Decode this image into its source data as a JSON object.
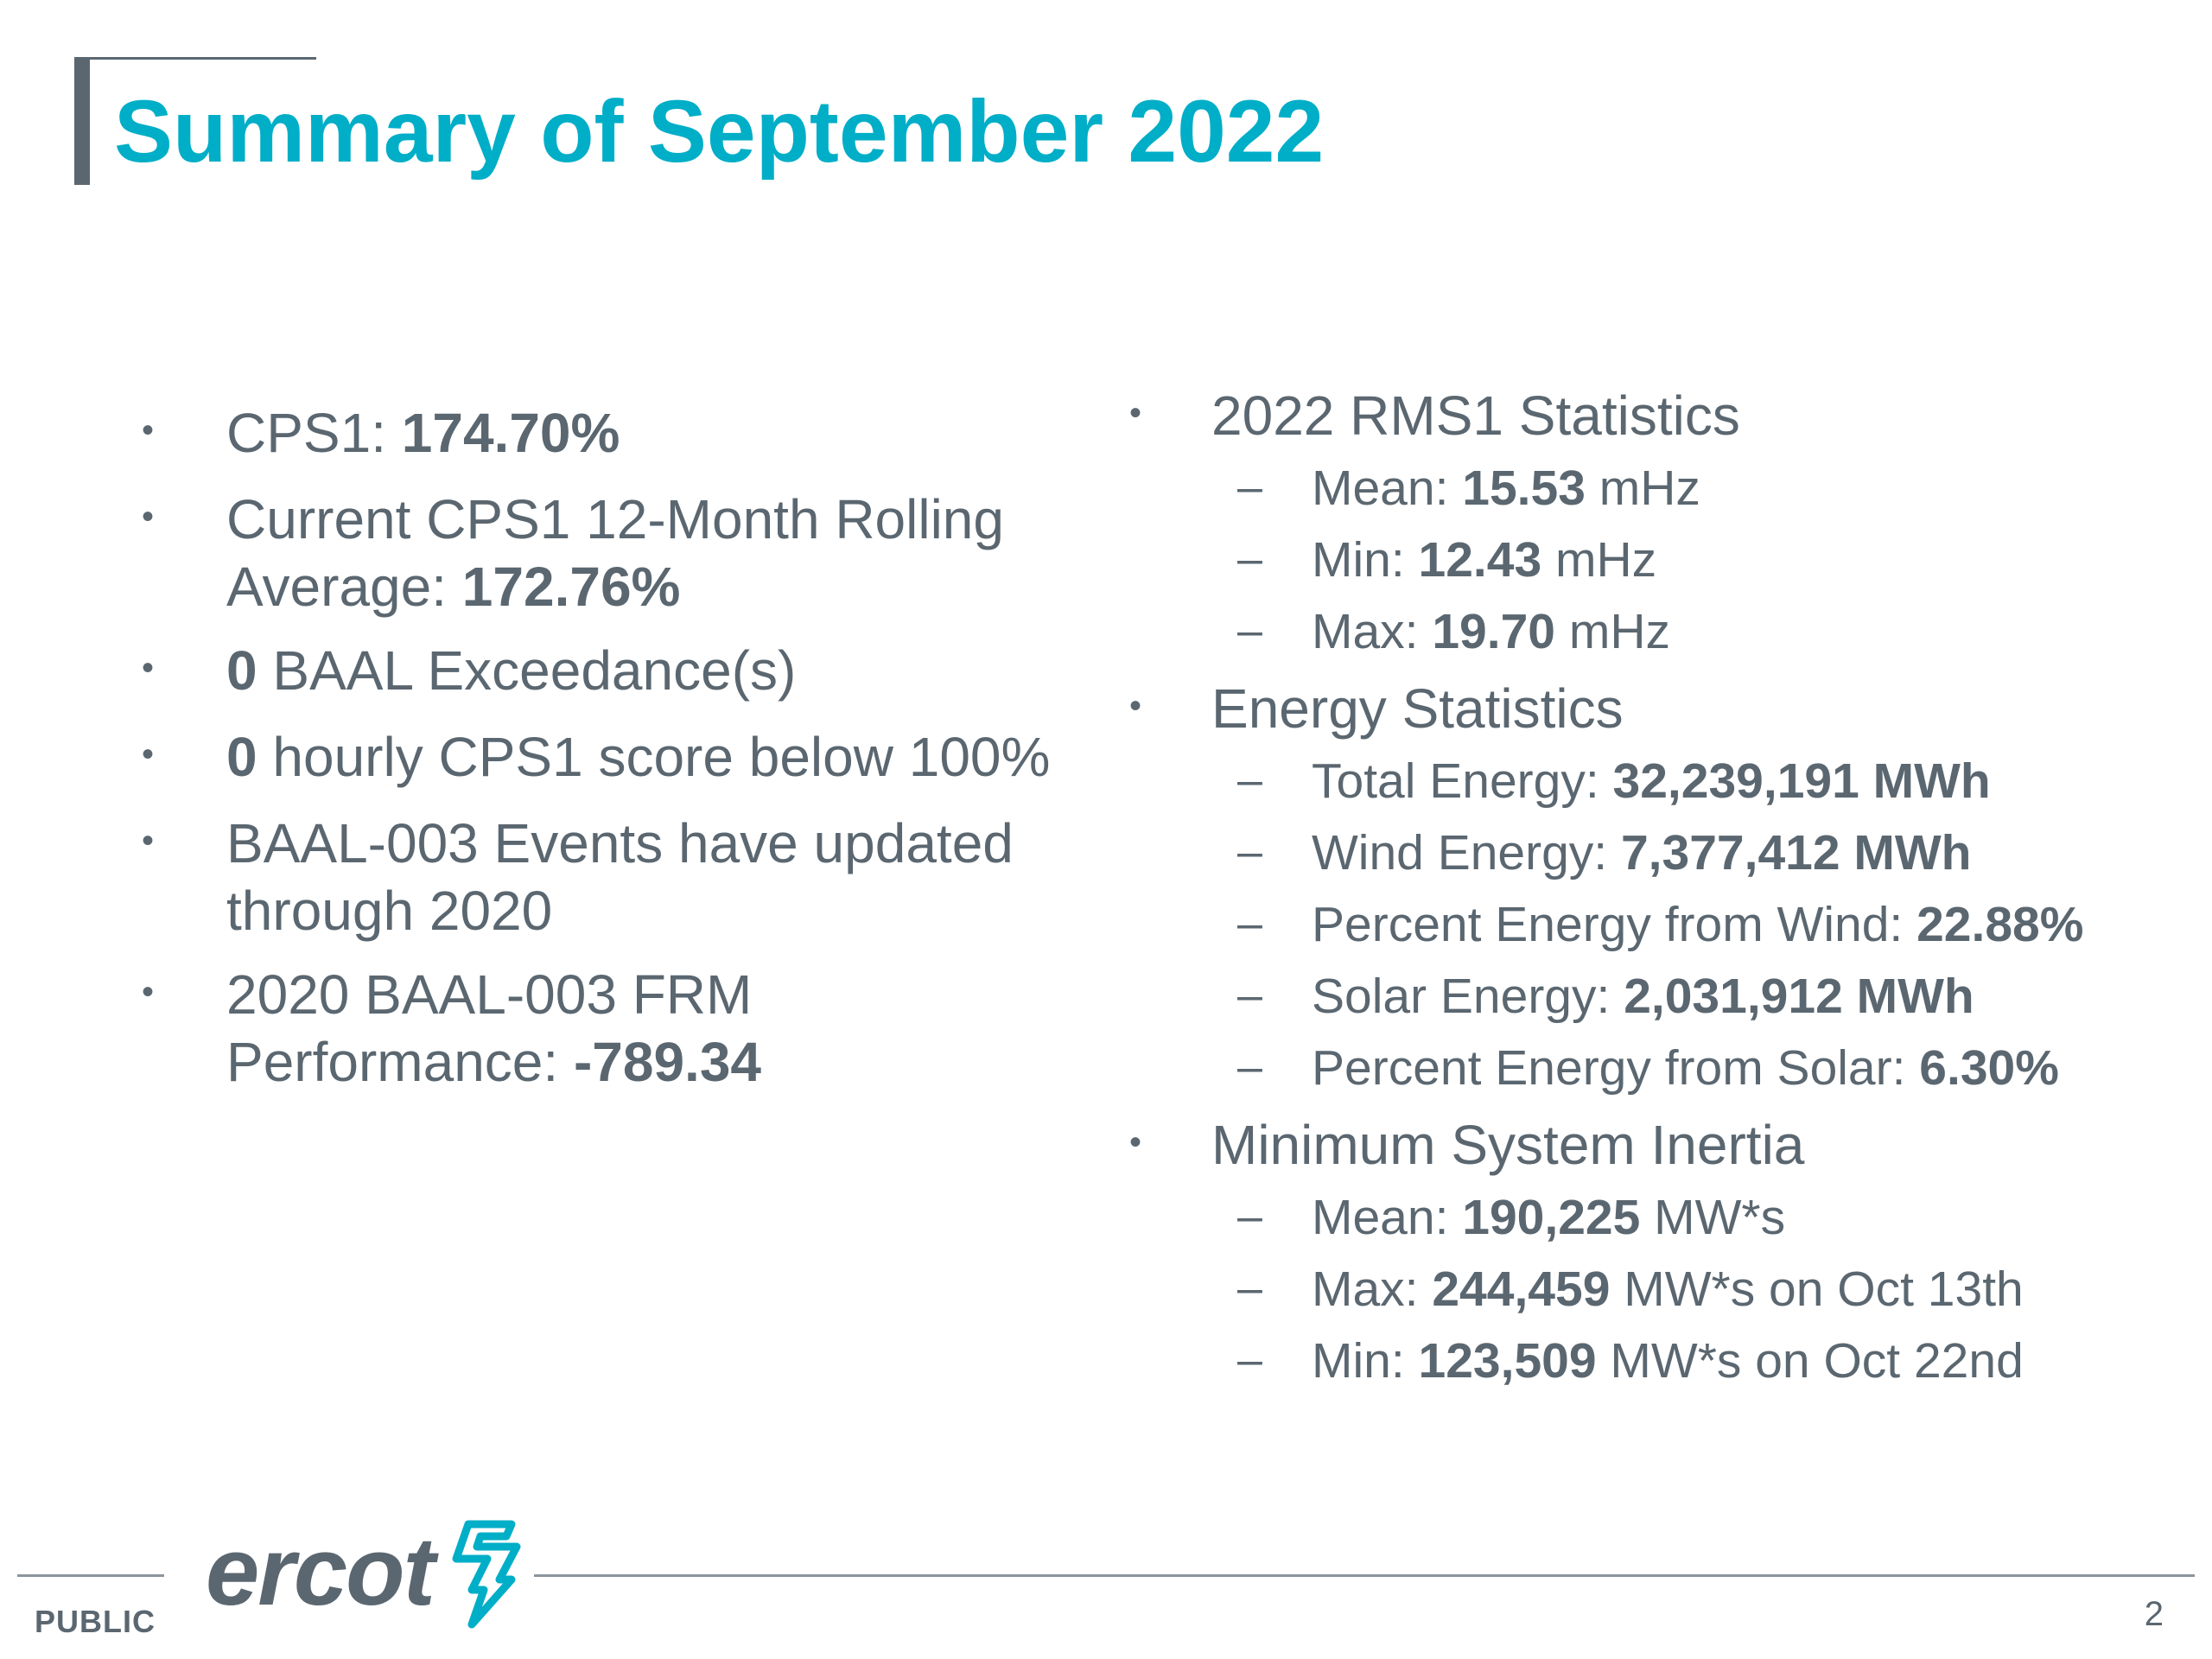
{
  "slide": {
    "title": "Summary of September 2022",
    "page_number": "2",
    "footer_label": "PUBLIC",
    "logo_text": "ercot"
  },
  "left_bullets": [
    {
      "lines": [
        [
          {
            "t": "CPS1: ",
            "b": false
          },
          {
            "t": "174.70%",
            "b": true
          }
        ]
      ]
    },
    {
      "lines": [
        [
          {
            "t": "Current CPS1 12-Month Rolling",
            "b": false
          }
        ],
        [
          {
            "t": "Average: ",
            "b": false
          },
          {
            "t": "172.76%",
            "b": true
          }
        ]
      ]
    },
    {
      "lines": [
        [
          {
            "t": "0",
            "b": true
          },
          {
            "t": " BAAL Exceedance(s)",
            "b": false
          }
        ]
      ]
    },
    {
      "lines": [
        [
          {
            "t": "0",
            "b": true
          },
          {
            "t": " hourly CPS1 score below 100%",
            "b": false
          }
        ]
      ]
    },
    {
      "lines": [
        [
          {
            "t": "BAAL-003 Events have updated",
            "b": false
          }
        ],
        [
          {
            "t": "through 2020",
            "b": false
          }
        ]
      ]
    },
    {
      "lines": [
        [
          {
            "t": "2020 BAAL-003 FRM",
            "b": false
          }
        ],
        [
          {
            "t": "Performance: ",
            "b": false
          },
          {
            "t": "-789.34",
            "b": true
          }
        ]
      ]
    }
  ],
  "right_bullets": [
    {
      "label": "2022 RMS1 Statistics",
      "subs": [
        [
          {
            "t": "Mean: ",
            "b": false
          },
          {
            "t": "15.53",
            "b": true
          },
          {
            "t": " mHz",
            "b": false
          }
        ],
        [
          {
            "t": "Min: ",
            "b": false
          },
          {
            "t": "12.43",
            "b": true
          },
          {
            "t": " mHz",
            "b": false
          }
        ],
        [
          {
            "t": "Max: ",
            "b": false
          },
          {
            "t": "19.70",
            "b": true
          },
          {
            "t": " mHz",
            "b": false
          }
        ]
      ]
    },
    {
      "label": "Energy Statistics",
      "subs": [
        [
          {
            "t": "Total Energy: ",
            "b": false
          },
          {
            "t": "32,239,191 MWh",
            "b": true
          }
        ],
        [
          {
            "t": "Wind Energy: ",
            "b": false
          },
          {
            "t": "7,377,412 MWh",
            "b": true
          }
        ],
        [
          {
            "t": "Percent Energy from Wind: ",
            "b": false
          },
          {
            "t": "22.88%",
            "b": true
          }
        ],
        [
          {
            "t": "Solar Energy: ",
            "b": false
          },
          {
            "t": "2,031,912 MWh",
            "b": true
          }
        ],
        [
          {
            "t": "Percent Energy from Solar: ",
            "b": false
          },
          {
            "t": "6.30%",
            "b": true
          }
        ]
      ]
    },
    {
      "label": "Minimum System Inertia",
      "subs": [
        [
          {
            "t": "Mean: ",
            "b": false
          },
          {
            "t": "190,225",
            "b": true
          },
          {
            "t": " MW*s",
            "b": false
          }
        ],
        [
          {
            "t": "Max: ",
            "b": false
          },
          {
            "t": "244,459",
            "b": true
          },
          {
            "t": " MW*s  on Oct 13th",
            "b": false
          }
        ],
        [
          {
            "t": "Min: ",
            "b": false
          },
          {
            "t": "123,509",
            "b": true
          },
          {
            "t": " MW*s  on Oct 22nd",
            "b": false
          }
        ]
      ]
    }
  ],
  "colors": {
    "title": "#00aec7",
    "body_text": "#5b6770",
    "logo_mark": "#00aec7"
  },
  "icons": {
    "bullet": "•",
    "sub_bullet": "–"
  }
}
